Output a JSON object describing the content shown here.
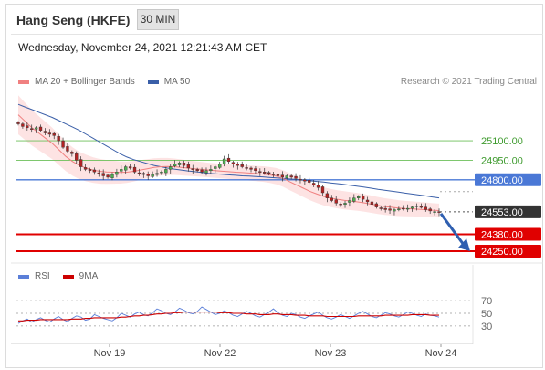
{
  "header": {
    "title": "Hang Seng (HKFE)",
    "timeframe": "30 MIN",
    "datetime": "Wednesday, November 24, 2021 12:21:43 AM CET"
  },
  "legend": {
    "ma20_label": "MA 20 + Bollinger Bands",
    "ma50_label": "MA 50",
    "credit": "Research © 2021 Trading Central",
    "rsi_label": "RSI",
    "ma9_label": "9MA"
  },
  "colors": {
    "ma20": "#f08080",
    "bollinger_fill": "#fde0e0",
    "ma50": "#3a5fa8",
    "candle_up": "#4caf50",
    "candle_down": "#b22222",
    "resistance": "#6bbf59",
    "blue_level": "#4a78d6",
    "support": "#e00000",
    "last_price": "#333333",
    "arrow": "#2f5fb0",
    "rsi": "#5b7fd8",
    "rsi_ma": "#cc0000"
  },
  "chart_data": [
    {
      "type": "candlestick",
      "title": "Hang Seng (HKFE)",
      "timeframe": "30 MIN",
      "x_ticks": [
        "Nov 19",
        "Nov 22",
        "Nov 23",
        "Nov 24"
      ],
      "ylim": [
        24180,
        25480
      ],
      "levels": [
        {
          "value": 25100.0,
          "label": "25100.00",
          "kind": "resistance"
        },
        {
          "value": 24950.0,
          "label": "24950.00",
          "kind": "resistance"
        },
        {
          "value": 24800.0,
          "label": "24800.00",
          "kind": "pivot"
        },
        {
          "value": 24553.0,
          "label": "24553.00",
          "kind": "last"
        },
        {
          "value": 24380.0,
          "label": "24380.00",
          "kind": "support"
        },
        {
          "value": 24250.0,
          "label": "24250.00",
          "kind": "support"
        }
      ],
      "close_series": [
        25230,
        25210,
        25200,
        25190,
        25200,
        25180,
        25160,
        25150,
        25140,
        25100,
        25050,
        25020,
        25000,
        24950,
        24900,
        24880,
        24870,
        24860,
        24850,
        24830,
        24820,
        24840,
        24860,
        24880,
        24900,
        24890,
        24860,
        24850,
        24840,
        24830,
        24840,
        24850,
        24860,
        24880,
        24900,
        24920,
        24930,
        24910,
        24890,
        24880,
        24870,
        24860,
        24870,
        24880,
        24900,
        24920,
        24960,
        24940,
        24920,
        24910,
        24900,
        24890,
        24880,
        24870,
        24860,
        24850,
        24850,
        24840,
        24830,
        24820,
        24830,
        24820,
        24810,
        24800,
        24790,
        24780,
        24760,
        24740,
        24700,
        24660,
        24640,
        24620,
        24610,
        24620,
        24640,
        24660,
        24670,
        24650,
        24630,
        24610,
        24590,
        24580,
        24570,
        24565,
        24570,
        24575,
        24580,
        24580,
        24590,
        24600,
        24590,
        24570,
        24560,
        24555,
        24553
      ],
      "ma50_series": [
        25380,
        25360,
        25340,
        25320,
        25300,
        25280,
        25255,
        25230,
        25205,
        25180,
        25150,
        25120,
        25090,
        25060,
        25030,
        25000,
        24975,
        24955,
        24940,
        24925,
        24910,
        24900,
        24890,
        24882,
        24875,
        24868,
        24862,
        24856,
        24850,
        24846,
        24842,
        24838,
        24834,
        24830,
        24828,
        24825,
        24822,
        24818,
        24814,
        24810,
        24806,
        24802,
        24797,
        24792,
        24787,
        24782,
        24776,
        24770,
        24764,
        24757,
        24750,
        24743,
        24735,
        24727,
        24720,
        24712,
        24705,
        24697,
        24690,
        24683,
        24676,
        24668,
        24661
      ],
      "ma20_series": [
        25300,
        25250,
        25200,
        25160,
        25120,
        25080,
        25030,
        24980,
        24940,
        24910,
        24890,
        24875,
        24865,
        24860,
        24858,
        24856,
        24858,
        24865,
        24875,
        24885,
        24895,
        24900,
        24902,
        24900,
        24895,
        24890,
        24885,
        24880,
        24875,
        24870,
        24866,
        24862,
        24858,
        24855,
        24852,
        24848,
        24844,
        24838,
        24828,
        24810,
        24785,
        24760,
        24735,
        24710,
        24690,
        24672,
        24660,
        24650,
        24642,
        24636,
        24630,
        24622,
        24612,
        24602,
        24594,
        24588,
        24582,
        24578,
        24576,
        24573,
        24570,
        24566,
        24563
      ]
    },
    {
      "type": "line",
      "title": "RSI",
      "yticks": [
        70,
        50,
        30
      ],
      "ylim": [
        14,
        86
      ],
      "series": [
        {
          "name": "RSI",
          "values": [
            34,
            38,
            41,
            36,
            40,
            43,
            39,
            36,
            41,
            45,
            40,
            37,
            42,
            46,
            44,
            39,
            41,
            48,
            45,
            42,
            40,
            38,
            43,
            50,
            47,
            44,
            49,
            52,
            48,
            46,
            51,
            57,
            54,
            50,
            48,
            52,
            58,
            55,
            51,
            49,
            53,
            60,
            56,
            52,
            48,
            50,
            54,
            51,
            47,
            45,
            49,
            53,
            50,
            46,
            44,
            48,
            52,
            57,
            51,
            47,
            45,
            50,
            48,
            44,
            42,
            46,
            49,
            52,
            47,
            43,
            41,
            44,
            48,
            45,
            42,
            46,
            50,
            53,
            49,
            45,
            43,
            47,
            51,
            49,
            46,
            44,
            48,
            52,
            50,
            47,
            45,
            49,
            47,
            46,
            44
          ]
        },
        {
          "name": "9MA",
          "values": [
            38,
            38,
            39,
            39,
            39,
            40,
            40,
            40,
            40,
            40,
            40,
            40,
            41,
            41,
            41,
            42,
            42,
            43,
            43,
            43,
            43,
            43,
            43,
            44,
            44,
            45,
            46,
            46,
            47,
            47,
            48,
            49,
            49,
            50,
            50,
            51,
            51,
            52,
            52,
            52,
            52,
            52,
            52,
            52,
            52,
            51,
            51,
            51,
            50,
            50,
            50,
            49,
            49,
            49,
            48,
            48,
            48,
            49,
            49,
            48,
            48,
            48,
            47,
            47,
            47,
            46,
            46,
            46,
            46,
            45,
            45,
            45,
            45,
            45,
            45,
            45,
            46,
            46,
            46,
            46,
            46,
            46,
            47,
            47,
            47,
            47,
            47,
            47,
            48,
            48,
            48,
            48,
            47,
            47,
            47
          ]
        }
      ]
    }
  ]
}
